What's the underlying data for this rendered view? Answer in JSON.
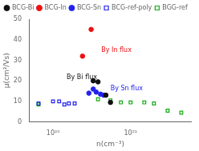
{
  "chart_data": {
    "type": "scatter",
    "xlabel": "n(cm⁻³)",
    "ylabel": "μ(cm²/Vs)",
    "log": "x",
    "xlim": [
      5e+19,
      6e+21
    ],
    "ylim": [
      0,
      50
    ],
    "xticks": [
      {
        "value": 1e+20,
        "label": "10²⁰"
      },
      {
        "value": 1e+21,
        "label": "10²¹"
      }
    ],
    "yticks": [
      0,
      10,
      20,
      30,
      40,
      50
    ],
    "grid": false,
    "legend": "upper left",
    "series": [
      {
        "name": "BCG-Bi",
        "color": "#111111",
        "marker": "circle",
        "x": [
          3.3e+20,
          3.8e+20,
          4.8e+20,
          5.5e+20
        ],
        "values": [
          20,
          19.5,
          13,
          9.5
        ]
      },
      {
        "name": "BCG-In",
        "color": "#ee1111",
        "marker": "circle",
        "x": [
          2.4e+20,
          3.1e+20
        ],
        "values": [
          32,
          45
        ]
      },
      {
        "name": "BCG-Sn",
        "color": "#2222ee",
        "marker": "circle",
        "x": [
          2.9e+20,
          3.3e+20,
          3.6e+20,
          4.1e+20,
          4.5e+20
        ],
        "values": [
          14,
          16,
          14.5,
          13.5,
          13
        ]
      },
      {
        "name": "BCG-ref-poly",
        "color": "#2222ee",
        "marker": "open_square",
        "x": [
          6.5e+19,
          1e+20,
          1.2e+20,
          1.4e+20,
          1.6e+20,
          1.9e+20
        ],
        "values": [
          9,
          10,
          10,
          8.5,
          9,
          9
        ]
      },
      {
        "name": "BGG-ref",
        "color": "#11aa11",
        "marker": "open_square",
        "x": [
          6.5e+19,
          3.8e+20,
          5.5e+20,
          7.5e+20,
          1e+21,
          1.5e+21,
          2e+21,
          3e+21,
          4.5e+21
        ],
        "values": [
          8.5,
          11,
          10.5,
          9.5,
          9.5,
          9.5,
          9,
          5.5,
          4.5
        ]
      }
    ],
    "annotations": [
      {
        "text": "By In flux",
        "x": 4.2e+20,
        "y": 34,
        "color": "#ee1111"
      },
      {
        "text": "By Bi flux",
        "x": 1.5e+20,
        "y": 21,
        "color": "#111111"
      },
      {
        "text": "By Sn flux",
        "x": 5.5e+20,
        "y": 15.5,
        "color": "#2222ee"
      }
    ]
  }
}
